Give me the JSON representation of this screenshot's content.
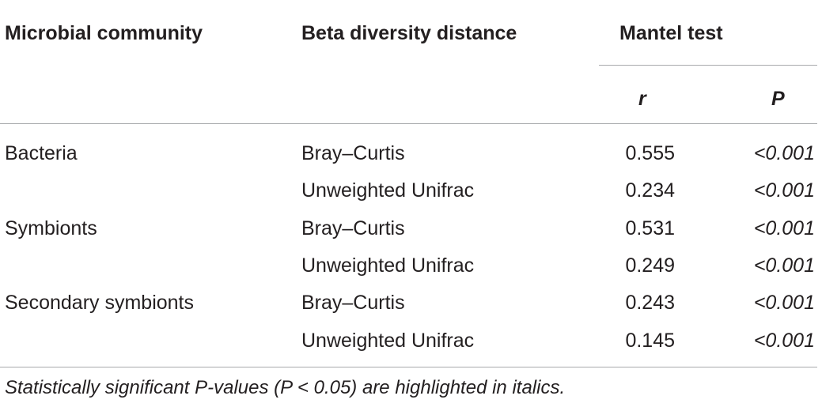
{
  "table": {
    "headers": {
      "col1": "Microbial community",
      "col2": "Beta diversity distance",
      "group": "Mantel test",
      "sub_r": "r",
      "sub_p": "P"
    },
    "rows": [
      {
        "community": "Bacteria",
        "distance": "Bray–Curtis",
        "r": "0.555",
        "p": "<0.001"
      },
      {
        "community": "",
        "distance": "Unweighted Unifrac",
        "r": "0.234",
        "p": "<0.001"
      },
      {
        "community": "Symbionts",
        "distance": "Bray–Curtis",
        "r": "0.531",
        "p": "<0.001"
      },
      {
        "community": "",
        "distance": "Unweighted Unifrac",
        "r": "0.249",
        "p": "<0.001"
      },
      {
        "community": "Secondary symbionts",
        "distance": "Bray–Curtis",
        "r": "0.243",
        "p": "<0.001"
      },
      {
        "community": "",
        "distance": "Unweighted Unifrac",
        "r": "0.145",
        "p": "<0.001"
      }
    ],
    "footnote": "Statistically significant P-values (P < 0.05) are highlighted in italics."
  }
}
